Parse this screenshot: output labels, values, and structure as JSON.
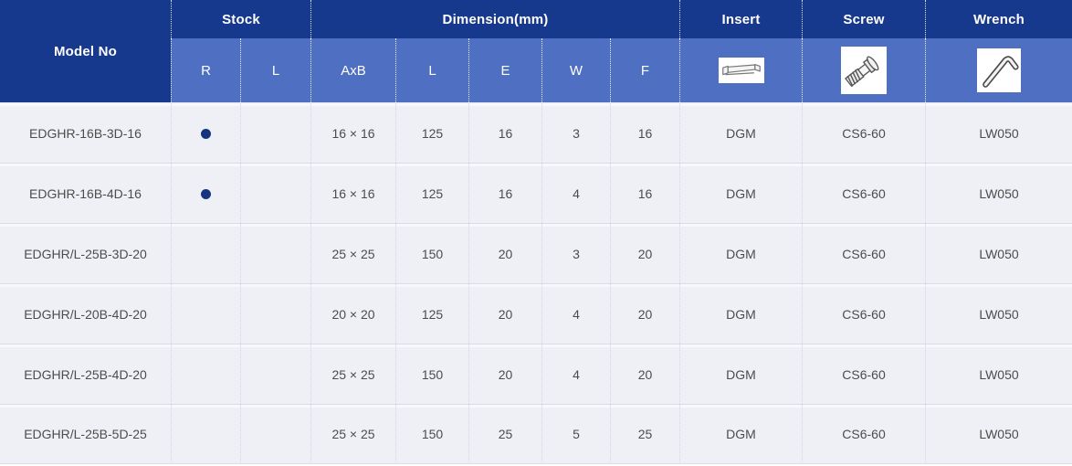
{
  "colors": {
    "header_dark": "#16388d",
    "header_light": "#4f70c2",
    "row_bg": "#eef0f6",
    "grid_line": "#d9dde6",
    "grid_light": "#f6f8fb",
    "dot": "#16357e",
    "header_text": "#ffffff",
    "cell_text": "#4c4c4c"
  },
  "table": {
    "headers": {
      "model_no": "Model No",
      "stock": "Stock",
      "dimension": "Dimension(mm)",
      "insert": "Insert",
      "screw": "Screw",
      "wrench": "Wrench",
      "sub": [
        "R",
        "L",
        "AxB",
        "L",
        "E",
        "W",
        "F"
      ]
    },
    "icons": {
      "insert": "insert-icon",
      "screw": "screw-icon",
      "wrench": "wrench-icon"
    },
    "rows": [
      {
        "model": "EDGHR-16B-3D-16",
        "stock_r": true,
        "stock_l": false,
        "axb": "16 × 16",
        "l": "125",
        "e": "16",
        "w": "3",
        "f": "16",
        "insert": "DGM",
        "screw": "CS6-60",
        "wrench": "LW050"
      },
      {
        "model": "EDGHR-16B-4D-16",
        "stock_r": true,
        "stock_l": false,
        "axb": "16 × 16",
        "l": "125",
        "e": "16",
        "w": "4",
        "f": "16",
        "insert": "DGM",
        "screw": "CS6-60",
        "wrench": "LW050"
      },
      {
        "model": "EDGHR/L-25B-3D-20",
        "stock_r": false,
        "stock_l": false,
        "axb": "25 × 25",
        "l": "150",
        "e": "20",
        "w": "3",
        "f": "20",
        "insert": "DGM",
        "screw": "CS6-60",
        "wrench": "LW050"
      },
      {
        "model": "EDGHR/L-20B-4D-20",
        "stock_r": false,
        "stock_l": false,
        "axb": "20 × 20",
        "l": "125",
        "e": "20",
        "w": "4",
        "f": "20",
        "insert": "DGM",
        "screw": "CS6-60",
        "wrench": "LW050"
      },
      {
        "model": "EDGHR/L-25B-4D-20",
        "stock_r": false,
        "stock_l": false,
        "axb": "25 × 25",
        "l": "150",
        "e": "20",
        "w": "4",
        "f": "20",
        "insert": "DGM",
        "screw": "CS6-60",
        "wrench": "LW050"
      },
      {
        "model": "EDGHR/L-25B-5D-25",
        "stock_r": false,
        "stock_l": false,
        "axb": "25 × 25",
        "l": "150",
        "e": "25",
        "w": "5",
        "f": "25",
        "insert": "DGM",
        "screw": "CS6-60",
        "wrench": "LW050"
      }
    ]
  }
}
